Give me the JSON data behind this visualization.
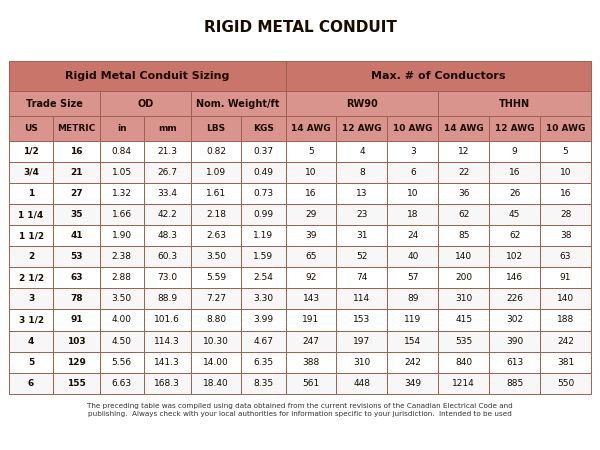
{
  "title": "RIGID METAL CONDUIT",
  "footer": "The preceding table was compiled using data obtained from the current revisions of the Canadian Electrical Code and\npublishing.  Always check with your local authorities for information specific to your jurisdiction.  Intended to be used",
  "header_row3": [
    "US",
    "METRIC",
    "in",
    "mm",
    "LBS",
    "KGS",
    "14 AWG",
    "12 AWG",
    "10 AWG",
    "14 AWG",
    "12 AWG",
    "10 AWG"
  ],
  "rows": [
    [
      "1/2",
      "16",
      "0.84",
      "21.3",
      "0.82",
      "0.37",
      "5",
      "4",
      "3",
      "12",
      "9",
      "5"
    ],
    [
      "3/4",
      "21",
      "1.05",
      "26.7",
      "1.09",
      "0.49",
      "10",
      "8",
      "6",
      "22",
      "16",
      "10"
    ],
    [
      "1",
      "27",
      "1.32",
      "33.4",
      "1.61",
      "0.73",
      "16",
      "13",
      "10",
      "36",
      "26",
      "16"
    ],
    [
      "1 1/4",
      "35",
      "1.66",
      "42.2",
      "2.18",
      "0.99",
      "29",
      "23",
      "18",
      "62",
      "45",
      "28"
    ],
    [
      "1 1/2",
      "41",
      "1.90",
      "48.3",
      "2.63",
      "1.19",
      "39",
      "31",
      "24",
      "85",
      "62",
      "38"
    ],
    [
      "2",
      "53",
      "2.38",
      "60.3",
      "3.50",
      "1.59",
      "65",
      "52",
      "40",
      "140",
      "102",
      "63"
    ],
    [
      "2 1/2",
      "63",
      "2.88",
      "73.0",
      "5.59",
      "2.54",
      "92",
      "74",
      "57",
      "200",
      "146",
      "91"
    ],
    [
      "3",
      "78",
      "3.50",
      "88.9",
      "7.27",
      "3.30",
      "143",
      "114",
      "89",
      "310",
      "226",
      "140"
    ],
    [
      "3 1/2",
      "91",
      "4.00",
      "101.6",
      "8.80",
      "3.99",
      "191",
      "153",
      "119",
      "415",
      "302",
      "188"
    ],
    [
      "4",
      "103",
      "4.50",
      "114.3",
      "10.30",
      "4.67",
      "247",
      "197",
      "154",
      "535",
      "390",
      "242"
    ],
    [
      "5",
      "129",
      "5.56",
      "141.3",
      "14.00",
      "6.35",
      "388",
      "310",
      "242",
      "840",
      "613",
      "381"
    ],
    [
      "6",
      "155",
      "6.63",
      "168.3",
      "18.40",
      "8.35",
      "561",
      "448",
      "349",
      "1214",
      "885",
      "550"
    ]
  ],
  "color_header_dark": "#c9756a",
  "color_header_light": "#d9948e",
  "color_row_white": "#ffffff",
  "color_row_alt": "#f7f7f7",
  "color_text": "#1a0a00",
  "color_border": "#a06050",
  "bg_color": "#ffffff",
  "title_color": "#1a0a00"
}
